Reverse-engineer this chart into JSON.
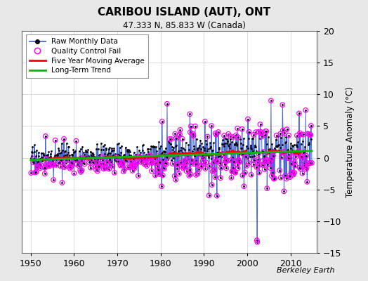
{
  "title": "CARIBOU ISLAND (AUT), ONT",
  "subtitle": "47.333 N, 85.833 W (Canada)",
  "ylabel": "Temperature Anomaly (°C)",
  "credit": "Berkeley Earth",
  "ylim": [
    -15,
    20
  ],
  "xlim": [
    1948,
    2016
  ],
  "yticks": [
    -15,
    -10,
    -5,
    0,
    5,
    10,
    15,
    20
  ],
  "xticks": [
    1950,
    1960,
    1970,
    1980,
    1990,
    2000,
    2010
  ],
  "bg_color": "#e8e8e8",
  "plot_bg_color": "#ffffff",
  "raw_line_color": "#3355cc",
  "raw_dot_color": "#000000",
  "qc_fail_color": "#ff00ff",
  "moving_avg_color": "#ff0000",
  "trend_color": "#00bb00",
  "seed": 17,
  "start_year": 1950.0,
  "end_year": 2014.917
}
